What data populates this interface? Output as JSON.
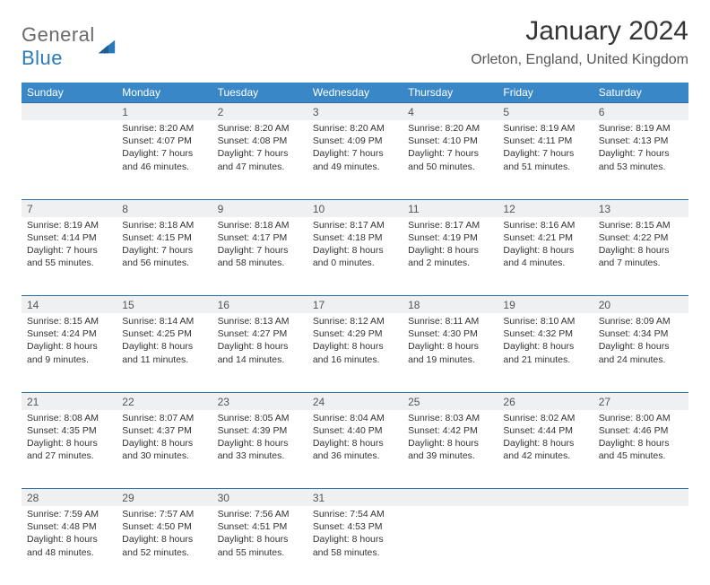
{
  "logo": {
    "text1": "General",
    "text2": "Blue"
  },
  "title": "January 2024",
  "location": "Orleton, England, United Kingdom",
  "colors": {
    "header_bg": "#3a87c8",
    "header_text": "#ffffff",
    "daynum_bg": "#eef0f1",
    "daynum_border": "#2e6fa3",
    "body_text": "#333333",
    "title_color": "#353535",
    "location_color": "#565656",
    "logo_gray": "#6a6a6a",
    "logo_blue": "#2a7ab9"
  },
  "fonts": {
    "title_size": 30,
    "location_size": 16,
    "weekday_size": 12,
    "daynum_size": 12,
    "body_size": 10.5
  },
  "weekdays": [
    "Sunday",
    "Monday",
    "Tuesday",
    "Wednesday",
    "Thursday",
    "Friday",
    "Saturday"
  ],
  "weeks": [
    [
      null,
      {
        "n": "1",
        "sr": "8:20 AM",
        "ss": "4:07 PM",
        "dl": "7 hours and 46 minutes."
      },
      {
        "n": "2",
        "sr": "8:20 AM",
        "ss": "4:08 PM",
        "dl": "7 hours and 47 minutes."
      },
      {
        "n": "3",
        "sr": "8:20 AM",
        "ss": "4:09 PM",
        "dl": "7 hours and 49 minutes."
      },
      {
        "n": "4",
        "sr": "8:20 AM",
        "ss": "4:10 PM",
        "dl": "7 hours and 50 minutes."
      },
      {
        "n": "5",
        "sr": "8:19 AM",
        "ss": "4:11 PM",
        "dl": "7 hours and 51 minutes."
      },
      {
        "n": "6",
        "sr": "8:19 AM",
        "ss": "4:13 PM",
        "dl": "7 hours and 53 minutes."
      }
    ],
    [
      {
        "n": "7",
        "sr": "8:19 AM",
        "ss": "4:14 PM",
        "dl": "7 hours and 55 minutes."
      },
      {
        "n": "8",
        "sr": "8:18 AM",
        "ss": "4:15 PM",
        "dl": "7 hours and 56 minutes."
      },
      {
        "n": "9",
        "sr": "8:18 AM",
        "ss": "4:17 PM",
        "dl": "7 hours and 58 minutes."
      },
      {
        "n": "10",
        "sr": "8:17 AM",
        "ss": "4:18 PM",
        "dl": "8 hours and 0 minutes."
      },
      {
        "n": "11",
        "sr": "8:17 AM",
        "ss": "4:19 PM",
        "dl": "8 hours and 2 minutes."
      },
      {
        "n": "12",
        "sr": "8:16 AM",
        "ss": "4:21 PM",
        "dl": "8 hours and 4 minutes."
      },
      {
        "n": "13",
        "sr": "8:15 AM",
        "ss": "4:22 PM",
        "dl": "8 hours and 7 minutes."
      }
    ],
    [
      {
        "n": "14",
        "sr": "8:15 AM",
        "ss": "4:24 PM",
        "dl": "8 hours and 9 minutes."
      },
      {
        "n": "15",
        "sr": "8:14 AM",
        "ss": "4:25 PM",
        "dl": "8 hours and 11 minutes."
      },
      {
        "n": "16",
        "sr": "8:13 AM",
        "ss": "4:27 PM",
        "dl": "8 hours and 14 minutes."
      },
      {
        "n": "17",
        "sr": "8:12 AM",
        "ss": "4:29 PM",
        "dl": "8 hours and 16 minutes."
      },
      {
        "n": "18",
        "sr": "8:11 AM",
        "ss": "4:30 PM",
        "dl": "8 hours and 19 minutes."
      },
      {
        "n": "19",
        "sr": "8:10 AM",
        "ss": "4:32 PM",
        "dl": "8 hours and 21 minutes."
      },
      {
        "n": "20",
        "sr": "8:09 AM",
        "ss": "4:34 PM",
        "dl": "8 hours and 24 minutes."
      }
    ],
    [
      {
        "n": "21",
        "sr": "8:08 AM",
        "ss": "4:35 PM",
        "dl": "8 hours and 27 minutes."
      },
      {
        "n": "22",
        "sr": "8:07 AM",
        "ss": "4:37 PM",
        "dl": "8 hours and 30 minutes."
      },
      {
        "n": "23",
        "sr": "8:05 AM",
        "ss": "4:39 PM",
        "dl": "8 hours and 33 minutes."
      },
      {
        "n": "24",
        "sr": "8:04 AM",
        "ss": "4:40 PM",
        "dl": "8 hours and 36 minutes."
      },
      {
        "n": "25",
        "sr": "8:03 AM",
        "ss": "4:42 PM",
        "dl": "8 hours and 39 minutes."
      },
      {
        "n": "26",
        "sr": "8:02 AM",
        "ss": "4:44 PM",
        "dl": "8 hours and 42 minutes."
      },
      {
        "n": "27",
        "sr": "8:00 AM",
        "ss": "4:46 PM",
        "dl": "8 hours and 45 minutes."
      }
    ],
    [
      {
        "n": "28",
        "sr": "7:59 AM",
        "ss": "4:48 PM",
        "dl": "8 hours and 48 minutes."
      },
      {
        "n": "29",
        "sr": "7:57 AM",
        "ss": "4:50 PM",
        "dl": "8 hours and 52 minutes."
      },
      {
        "n": "30",
        "sr": "7:56 AM",
        "ss": "4:51 PM",
        "dl": "8 hours and 55 minutes."
      },
      {
        "n": "31",
        "sr": "7:54 AM",
        "ss": "4:53 PM",
        "dl": "8 hours and 58 minutes."
      },
      null,
      null,
      null
    ]
  ],
  "labels": {
    "sunrise": "Sunrise:",
    "sunset": "Sunset:",
    "daylight": "Daylight:"
  }
}
